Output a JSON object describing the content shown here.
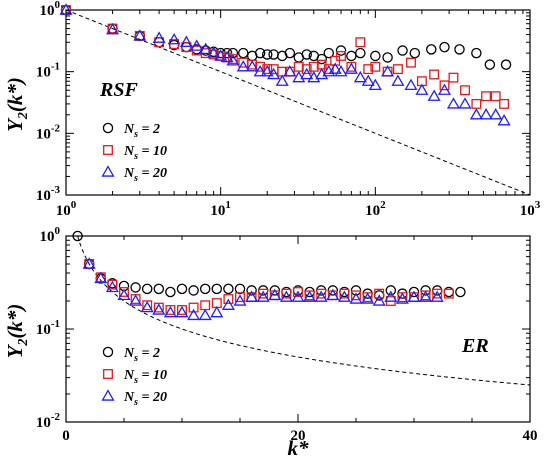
{
  "chart_data": [
    {
      "type": "scatter",
      "panel": "top",
      "x_scale": "log",
      "y_scale": "log",
      "xlim": [
        1,
        1000
      ],
      "ylim": [
        0.001,
        1
      ],
      "x_ticks": [
        {
          "v": 1,
          "base": "10",
          "exp": "0"
        },
        {
          "v": 10,
          "base": "10",
          "exp": "1"
        },
        {
          "v": 100,
          "base": "10",
          "exp": "2"
        },
        {
          "v": 1000,
          "base": "10",
          "exp": "3"
        }
      ],
      "y_ticks": [
        {
          "v": 1,
          "base": "10",
          "exp": "0"
        },
        {
          "v": 0.1,
          "base": "10",
          "exp": "-1"
        },
        {
          "v": 0.01,
          "base": "10",
          "exp": "-2"
        },
        {
          "v": 0.001,
          "base": "10",
          "exp": "-3"
        }
      ],
      "ylabel": {
        "main": "Y",
        "sub": "2",
        "arg": "(k*)"
      },
      "annotation": "RSF",
      "legend": {
        "position": "lower-left",
        "entries": [
          {
            "marker": "circle",
            "color": "#000000",
            "text": "N",
            "sub": "s",
            "rest": " = 2"
          },
          {
            "marker": "square",
            "color": "#e41a1c",
            "text": "N",
            "sub": "s",
            "rest": " = 10"
          },
          {
            "marker": "triangle",
            "color": "#1f1fff",
            "text": "N",
            "sub": "s",
            "rest": " = 20"
          }
        ]
      },
      "reference_line": {
        "style": "dashed",
        "x": [
          1,
          1000
        ],
        "y": [
          1,
          0.001
        ]
      },
      "series": [
        {
          "key": "Ns=2",
          "marker": "circle",
          "color": "#000000",
          "x": [
            1,
            2,
            3,
            4,
            5,
            6,
            7,
            8,
            9,
            10,
            11,
            12,
            14,
            16,
            18,
            20,
            22,
            25,
            28,
            32,
            36,
            40,
            45,
            50,
            60,
            70,
            80,
            100,
            120,
            150,
            180,
            230,
            280,
            350,
            450,
            550,
            700
          ],
          "y": [
            1,
            0.5,
            0.38,
            0.3,
            0.27,
            0.25,
            0.23,
            0.22,
            0.21,
            0.2,
            0.2,
            0.2,
            0.2,
            0.18,
            0.2,
            0.19,
            0.19,
            0.18,
            0.2,
            0.17,
            0.19,
            0.18,
            0.16,
            0.2,
            0.22,
            0.18,
            0.2,
            0.18,
            0.17,
            0.22,
            0.2,
            0.23,
            0.25,
            0.23,
            0.2,
            0.13,
            0.13
          ]
        },
        {
          "key": "Ns=10",
          "marker": "square",
          "color": "#e41a1c",
          "x": [
            1,
            2,
            3,
            4,
            5,
            6,
            7,
            8,
            9,
            10,
            11,
            12,
            14,
            16,
            18,
            20,
            22,
            25,
            28,
            32,
            36,
            40,
            45,
            50,
            55,
            60,
            70,
            80,
            90,
            100,
            120,
            140,
            170,
            200,
            240,
            280,
            320,
            380,
            450,
            520,
            600,
            680
          ],
          "y": [
            1,
            0.5,
            0.38,
            0.3,
            0.28,
            0.25,
            0.22,
            0.2,
            0.19,
            0.18,
            0.17,
            0.16,
            0.14,
            0.13,
            0.12,
            0.11,
            0.11,
            0.1,
            0.1,
            0.12,
            0.11,
            0.12,
            0.13,
            0.11,
            0.15,
            0.18,
            0.12,
            0.3,
            0.11,
            0.12,
            0.1,
            0.11,
            0.14,
            0.07,
            0.09,
            0.06,
            0.08,
            0.05,
            0.03,
            0.04,
            0.04,
            0.03
          ]
        },
        {
          "key": "Ns=20",
          "marker": "triangle",
          "color": "#1f1fff",
          "x": [
            1,
            2,
            3,
            4,
            5,
            6,
            7,
            8,
            9,
            10,
            11,
            12,
            14,
            16,
            18,
            20,
            22,
            25,
            28,
            32,
            36,
            40,
            45,
            50,
            55,
            60,
            70,
            80,
            90,
            100,
            120,
            140,
            170,
            200,
            240,
            280,
            320,
            380,
            450,
            520,
            600,
            680
          ],
          "y": [
            1,
            0.48,
            0.38,
            0.35,
            0.33,
            0.3,
            0.26,
            0.23,
            0.2,
            0.18,
            0.17,
            0.15,
            0.12,
            0.12,
            0.1,
            0.1,
            0.09,
            0.07,
            0.1,
            0.08,
            0.09,
            0.08,
            0.09,
            0.1,
            0.11,
            0.1,
            0.11,
            0.08,
            0.07,
            0.06,
            0.1,
            0.07,
            0.06,
            0.05,
            0.04,
            0.05,
            0.03,
            0.03,
            0.02,
            0.02,
            0.02,
            0.016
          ]
        }
      ]
    },
    {
      "type": "scatter",
      "panel": "bottom",
      "x_scale": "linear",
      "y_scale": "log",
      "xlim": [
        0,
        40
      ],
      "ylim": [
        0.01,
        1
      ],
      "x_ticks": [
        {
          "v": 0,
          "label": "0"
        },
        {
          "v": 20,
          "label": "20"
        },
        {
          "v": 40,
          "label": "40"
        }
      ],
      "y_ticks": [
        {
          "v": 1,
          "base": "10",
          "exp": "0"
        },
        {
          "v": 0.1,
          "base": "10",
          "exp": "-1"
        },
        {
          "v": 0.01,
          "base": "10",
          "exp": "-2"
        }
      ],
      "xlabel": "k*",
      "ylabel": {
        "main": "Y",
        "sub": "2",
        "arg": "(k*)"
      },
      "annotation": "ER",
      "legend": {
        "position": "lower-left",
        "entries": [
          {
            "marker": "circle",
            "color": "#000000",
            "text": "N",
            "sub": "s",
            "rest": " = 2"
          },
          {
            "marker": "square",
            "color": "#e41a1c",
            "text": "N",
            "sub": "s",
            "rest": " = 10"
          },
          {
            "marker": "triangle",
            "color": "#1f1fff",
            "text": "N",
            "sub": "s",
            "rest": " = 20"
          }
        ]
      },
      "reference_line": {
        "style": "dashed",
        "function": "1/k",
        "x_range": [
          1,
          40
        ]
      },
      "series": [
        {
          "key": "Ns=2",
          "marker": "circle",
          "color": "#000000",
          "x": [
            1,
            2,
            3,
            4,
            5,
            6,
            7,
            8,
            9,
            10,
            11,
            12,
            13,
            14,
            15,
            16,
            17,
            18,
            19,
            20,
            21,
            22,
            23,
            24,
            25,
            26,
            27,
            28,
            29,
            30,
            31,
            32,
            33,
            34
          ],
          "y": [
            1,
            0.5,
            0.35,
            0.31,
            0.29,
            0.28,
            0.27,
            0.27,
            0.25,
            0.27,
            0.26,
            0.27,
            0.27,
            0.27,
            0.27,
            0.26,
            0.26,
            0.26,
            0.25,
            0.26,
            0.25,
            0.26,
            0.26,
            0.25,
            0.26,
            0.24,
            0.23,
            0.26,
            0.24,
            0.25,
            0.26,
            0.26,
            0.25,
            0.25
          ]
        },
        {
          "key": "Ns=10",
          "marker": "square",
          "color": "#e41a1c",
          "x": [
            2,
            3,
            4,
            5,
            6,
            7,
            8,
            9,
            10,
            11,
            12,
            13,
            14,
            15,
            16,
            17,
            18,
            19,
            20,
            21,
            22,
            23,
            24,
            25,
            26,
            27,
            28,
            29,
            30,
            31,
            32,
            33
          ],
          "y": [
            0.5,
            0.36,
            0.3,
            0.25,
            0.21,
            0.18,
            0.17,
            0.16,
            0.16,
            0.17,
            0.18,
            0.19,
            0.21,
            0.22,
            0.22,
            0.24,
            0.23,
            0.24,
            0.25,
            0.23,
            0.24,
            0.23,
            0.24,
            0.23,
            0.22,
            0.24,
            0.2,
            0.22,
            0.22,
            0.23,
            0.24,
            0.24
          ]
        },
        {
          "key": "Ns=20",
          "marker": "triangle",
          "color": "#1f1fff",
          "x": [
            2,
            3,
            4,
            5,
            6,
            7,
            8,
            9,
            10,
            11,
            12,
            13,
            14,
            15,
            16,
            17,
            18,
            19,
            20,
            21,
            22,
            23,
            24,
            25,
            26,
            27,
            28,
            29,
            30,
            31,
            32
          ],
          "y": [
            0.5,
            0.35,
            0.28,
            0.23,
            0.2,
            0.17,
            0.16,
            0.15,
            0.15,
            0.14,
            0.14,
            0.15,
            0.18,
            0.2,
            0.22,
            0.22,
            0.23,
            0.22,
            0.22,
            0.22,
            0.22,
            0.23,
            0.22,
            0.21,
            0.21,
            0.2,
            0.22,
            0.21,
            0.22,
            0.22,
            0.22
          ]
        }
      ]
    }
  ]
}
